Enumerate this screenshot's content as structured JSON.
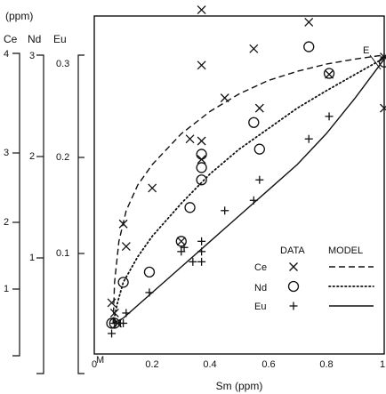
{
  "chart_data": {
    "type": "scatter",
    "xlabel": "Sm (ppm)",
    "xlim": [
      0,
      1
    ],
    "ylim": [
      0,
      0.33
    ],
    "x_ticks": [
      "0",
      "0.2",
      "0.4",
      "0.6",
      "0.8",
      "1"
    ],
    "y_ticks": [
      "0.1",
      "0.2",
      "0.3"
    ],
    "unit_label": "(ppm)",
    "aux_axes": [
      {
        "name": "Ce",
        "ticks": [
          "1",
          "2",
          "2",
          "3",
          "4"
        ]
      },
      {
        "name": "Nd",
        "ticks": [
          "1",
          "2",
          "3"
        ]
      },
      {
        "name": "Eu",
        "ticks": [
          "0.1",
          "0.2",
          "0.3"
        ]
      }
    ],
    "point_labels": {
      "M": "M",
      "E": "E"
    },
    "legend": {
      "data_header": "DATA",
      "model_header": "MODEL",
      "entries": [
        {
          "name": "Ce",
          "marker": "x",
          "line": "dashed"
        },
        {
          "name": "Nd",
          "marker": "circle",
          "line": "dotted"
        },
        {
          "name": "Eu",
          "marker": "plus",
          "line": "solid"
        }
      ]
    },
    "series": [
      {
        "name": "Ce",
        "marker": "x",
        "points": [
          [
            0.06,
            0.05
          ],
          [
            0.07,
            0.04
          ],
          [
            0.08,
            0.03
          ],
          [
            0.1,
            0.127
          ],
          [
            0.11,
            0.105
          ],
          [
            0.2,
            0.162
          ],
          [
            0.33,
            0.21
          ],
          [
            0.37,
            0.208
          ],
          [
            0.37,
            0.19
          ],
          [
            0.3,
            0.11
          ],
          [
            0.37,
            0.282
          ],
          [
            0.37,
            0.336
          ],
          [
            0.45,
            0.25
          ],
          [
            0.55,
            0.298
          ],
          [
            0.57,
            0.24
          ],
          [
            0.74,
            0.324
          ],
          [
            0.81,
            0.273
          ],
          [
            1.0,
            0.29
          ],
          [
            1.0,
            0.24
          ]
        ]
      },
      {
        "name": "Nd",
        "marker": "circle",
        "points": [
          [
            0.06,
            0.03
          ],
          [
            0.07,
            0.03
          ],
          [
            0.1,
            0.07
          ],
          [
            0.19,
            0.08
          ],
          [
            0.3,
            0.11
          ],
          [
            0.33,
            0.143
          ],
          [
            0.37,
            0.17
          ],
          [
            0.37,
            0.182
          ],
          [
            0.37,
            0.195
          ],
          [
            0.55,
            0.226
          ],
          [
            0.57,
            0.2
          ],
          [
            0.74,
            0.3
          ],
          [
            0.81,
            0.274
          ],
          [
            1.0,
            0.285
          ]
        ]
      },
      {
        "name": "Eu",
        "marker": "plus",
        "points": [
          [
            0.06,
            0.02
          ],
          [
            0.07,
            0.03
          ],
          [
            0.09,
            0.03
          ],
          [
            0.1,
            0.03
          ],
          [
            0.11,
            0.04
          ],
          [
            0.19,
            0.06
          ],
          [
            0.3,
            0.1
          ],
          [
            0.31,
            0.104
          ],
          [
            0.34,
            0.09
          ],
          [
            0.37,
            0.09
          ],
          [
            0.37,
            0.1
          ],
          [
            0.37,
            0.11
          ],
          [
            0.45,
            0.14
          ],
          [
            0.55,
            0.15
          ],
          [
            0.57,
            0.17
          ],
          [
            0.74,
            0.21
          ],
          [
            0.81,
            0.232
          ],
          [
            1.0,
            0.29
          ]
        ]
      }
    ],
    "model_curves": [
      {
        "name": "Ce",
        "style": "dashed",
        "points": [
          [
            0.065,
            0.03
          ],
          [
            0.07,
            0.07
          ],
          [
            0.085,
            0.11
          ],
          [
            0.11,
            0.14
          ],
          [
            0.15,
            0.165
          ],
          [
            0.2,
            0.185
          ],
          [
            0.3,
            0.215
          ],
          [
            0.4,
            0.237
          ],
          [
            0.5,
            0.254
          ],
          [
            0.6,
            0.267
          ],
          [
            0.7,
            0.276
          ],
          [
            0.8,
            0.283
          ],
          [
            0.9,
            0.288
          ],
          [
            1.0,
            0.292
          ]
        ]
      },
      {
        "name": "Nd",
        "style": "dotted",
        "points": [
          [
            0.065,
            0.03
          ],
          [
            0.08,
            0.05
          ],
          [
            0.1,
            0.07
          ],
          [
            0.15,
            0.095
          ],
          [
            0.2,
            0.115
          ],
          [
            0.3,
            0.147
          ],
          [
            0.4,
            0.176
          ],
          [
            0.5,
            0.2
          ],
          [
            0.6,
            0.22
          ],
          [
            0.7,
            0.24
          ],
          [
            0.8,
            0.257
          ],
          [
            0.9,
            0.273
          ],
          [
            1.0,
            0.289
          ]
        ]
      },
      {
        "name": "Eu",
        "style": "solid",
        "points": [
          [
            0.065,
            0.03
          ],
          [
            0.1,
            0.035
          ],
          [
            0.2,
            0.06
          ],
          [
            0.3,
            0.085
          ],
          [
            0.4,
            0.11
          ],
          [
            0.5,
            0.135
          ],
          [
            0.6,
            0.16
          ],
          [
            0.7,
            0.185
          ],
          [
            0.8,
            0.215
          ],
          [
            0.9,
            0.25
          ],
          [
            1.0,
            0.288
          ]
        ]
      }
    ]
  }
}
